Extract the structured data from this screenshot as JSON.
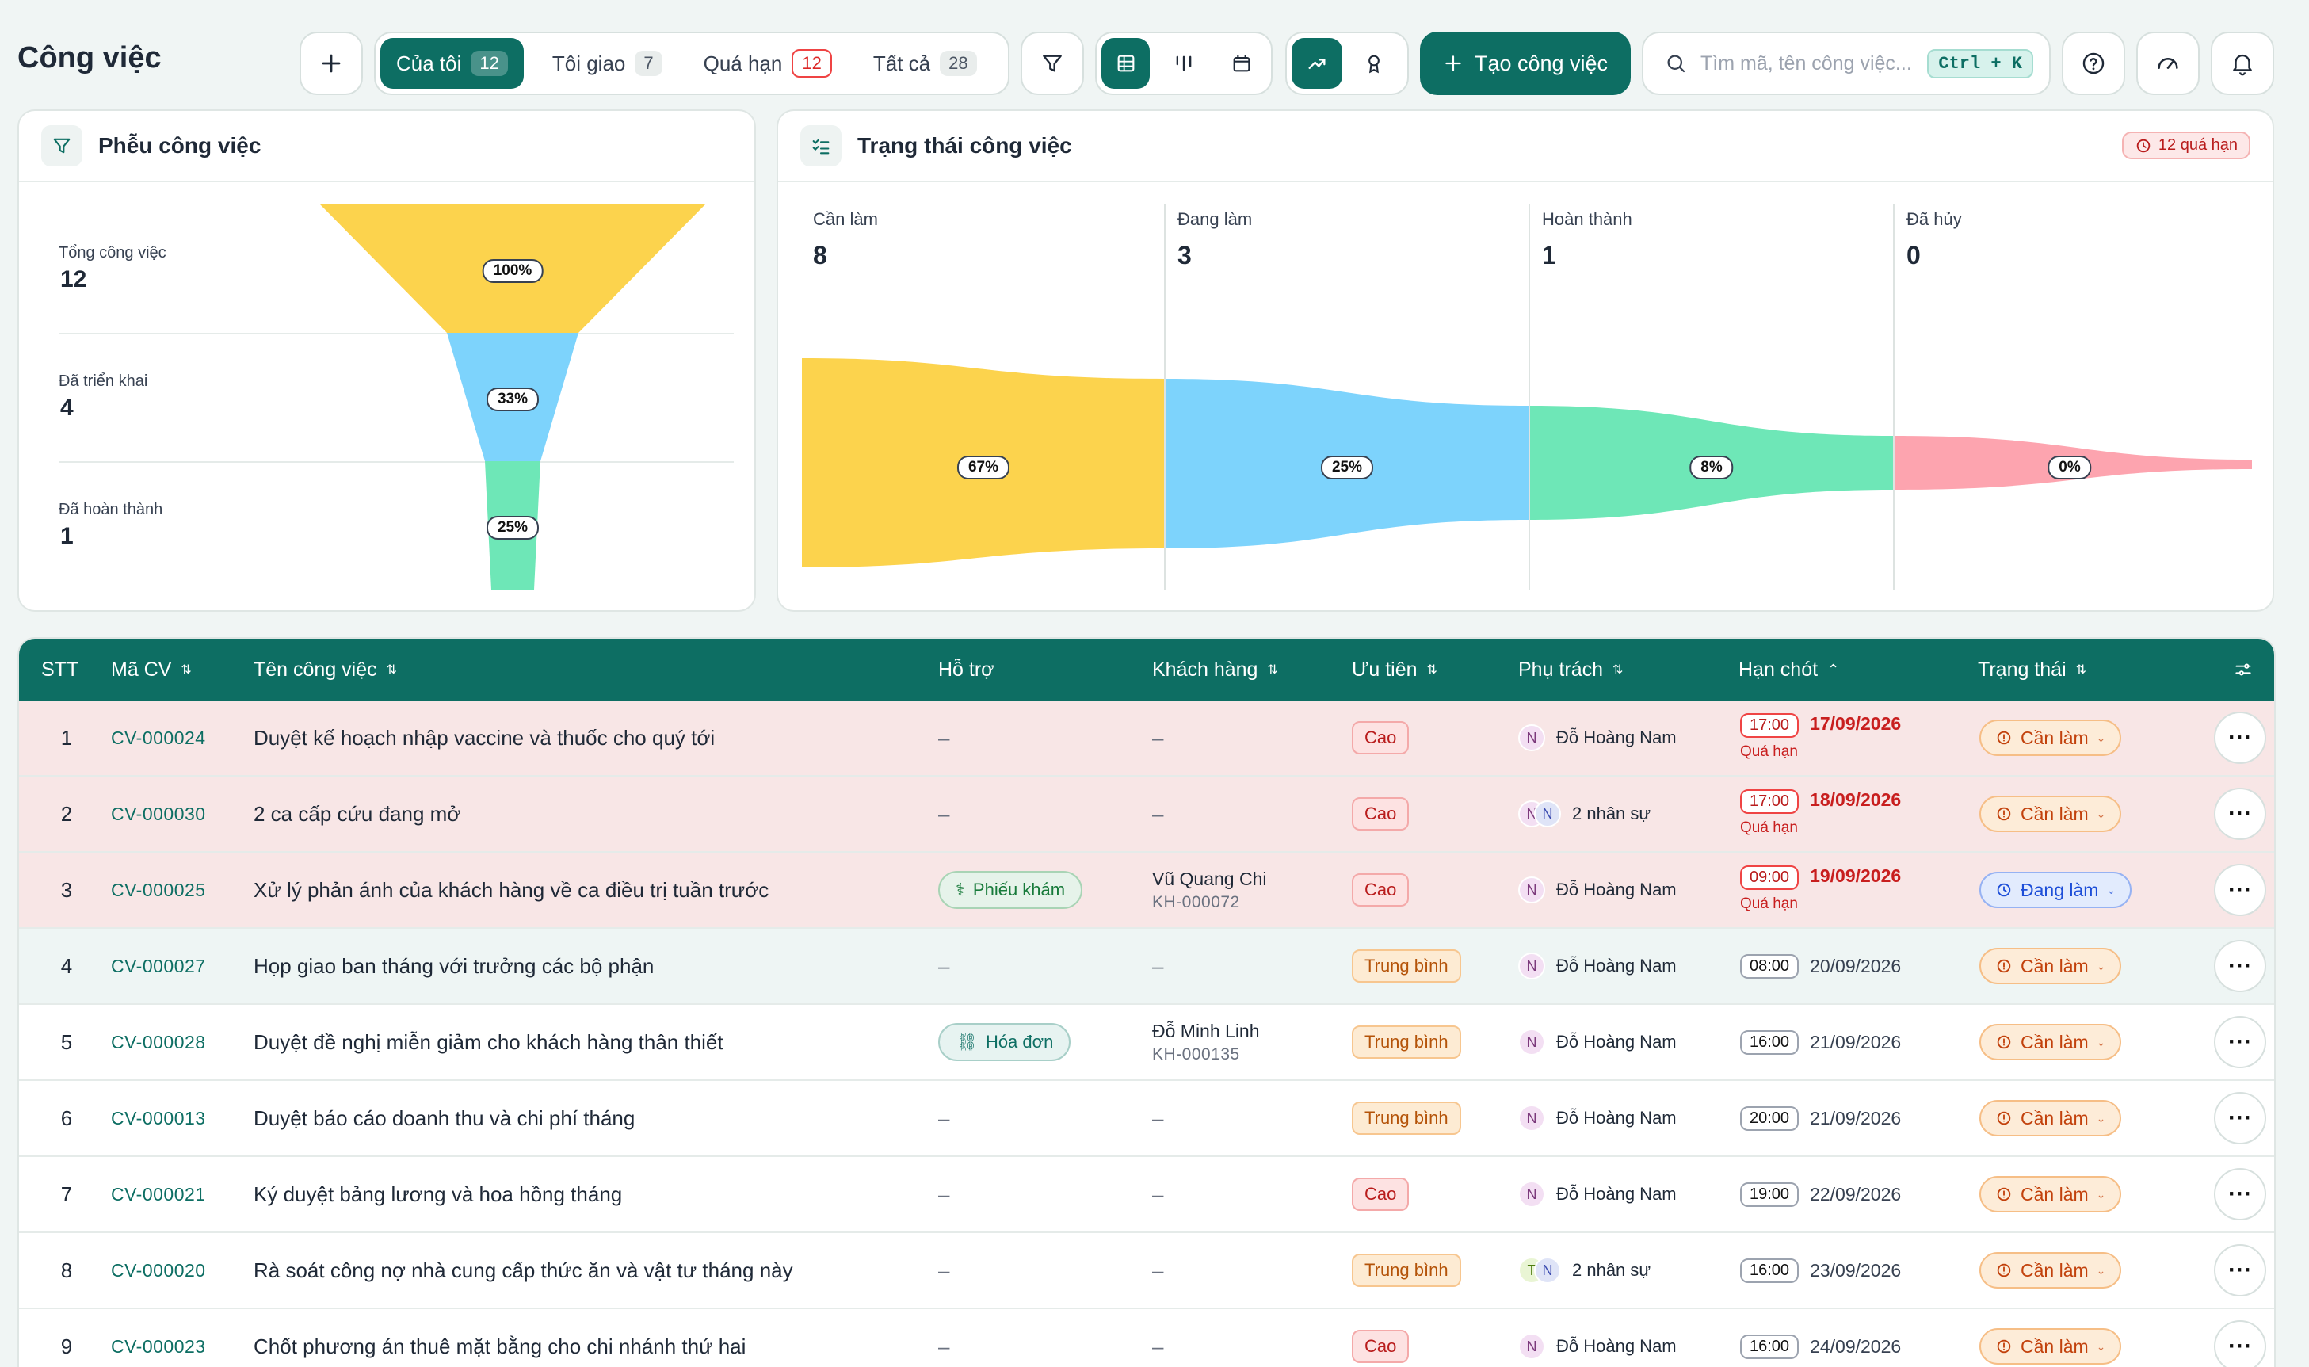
{
  "header": {
    "title": "Công việc",
    "tabs": [
      {
        "label": "Của tôi",
        "count": "12"
      },
      {
        "label": "Tôi giao",
        "count": "7"
      },
      {
        "label": "Quá hạn",
        "count": "12"
      },
      {
        "label": "Tất cả",
        "count": "28"
      }
    ],
    "create_label": "Tạo công việc",
    "search_placeholder": "Tìm mã, tên công việc...",
    "shortcut": "Ctrl + K"
  },
  "funnel": {
    "title": "Phễu công việc",
    "stages": [
      {
        "label": "Tổng công việc",
        "value": "12",
        "percent": "100%"
      },
      {
        "label": "Đã triển khai",
        "value": "4",
        "percent": "33%"
      },
      {
        "label": "Đã hoàn thành",
        "value": "1",
        "percent": "25%"
      }
    ]
  },
  "status_flow": {
    "title": "Trạng thái công việc",
    "overdue_badge": "12 quá hạn",
    "stages": [
      {
        "label": "Cần làm",
        "value": "8",
        "percent": "67%",
        "color": "#fcd34d"
      },
      {
        "label": "Đang làm",
        "value": "3",
        "percent": "25%",
        "color": "#7dd3fc"
      },
      {
        "label": "Hoàn thành",
        "value": "1",
        "percent": "8%",
        "color": "#6ee7b7"
      },
      {
        "label": "Đã hủy",
        "value": "0",
        "percent": "0%",
        "color": "#fda4af"
      }
    ]
  },
  "table": {
    "columns": {
      "stt": "STT",
      "code": "Mã CV",
      "name": "Tên công việc",
      "support": "Hỗ trợ",
      "customer": "Khách hàng",
      "priority": "Ưu tiên",
      "owner": "Phụ trách",
      "deadline": "Hạn chót",
      "status": "Trạng thái"
    },
    "overdue_label": "Quá hạn",
    "rows": [
      {
        "stt": "1",
        "code": "CV-000024",
        "name": "Duyệt kế hoạch nhập vaccine và thuốc cho quý tới",
        "support": "–",
        "customer_name": "–",
        "customer_code": "",
        "priority": "Cao",
        "owner": "Đỗ Hoàng Nam",
        "avatar": "N",
        "time": "17:00",
        "date": "17/09/2026",
        "overdue": true,
        "status": "Cần làm"
      },
      {
        "stt": "2",
        "code": "CV-000030",
        "name": "2 ca cấp cứu đang mở",
        "support": "–",
        "customer_name": "–",
        "customer_code": "",
        "priority": "Cao",
        "owner": "2 nhân sự",
        "avatar": "N",
        "avatar2": "N",
        "time": "17:00",
        "date": "18/09/2026",
        "overdue": true,
        "status": "Cần làm"
      },
      {
        "stt": "3",
        "code": "CV-000025",
        "name": "Xử lý phản ánh của khách hàng về ca điều trị tuần trước",
        "support": "Phiếu khám",
        "customer_name": "Vũ Quang Chi",
        "customer_code": "KH-000072",
        "priority": "Cao",
        "owner": "Đỗ Hoàng Nam",
        "avatar": "N",
        "time": "09:00",
        "date": "19/09/2026",
        "overdue": true,
        "status": "Đang làm"
      },
      {
        "stt": "4",
        "code": "CV-000027",
        "name": "Họp giao ban tháng với trưởng các bộ phận",
        "support": "–",
        "customer_name": "–",
        "customer_code": "",
        "priority": "Trung bình",
        "owner": "Đỗ Hoàng Nam",
        "avatar": "N",
        "time": "08:00",
        "date": "20/09/2026",
        "overdue": false,
        "status": "Cần làm"
      },
      {
        "stt": "5",
        "code": "CV-000028",
        "name": "Duyệt đề nghị miễn giảm cho khách hàng thân thiết",
        "support": "Hóa đơn",
        "customer_name": "Đỗ Minh Linh",
        "customer_code": "KH-000135",
        "priority": "Trung bình",
        "owner": "Đỗ Hoàng Nam",
        "avatar": "N",
        "time": "16:00",
        "date": "21/09/2026",
        "overdue": false,
        "status": "Cần làm"
      },
      {
        "stt": "6",
        "code": "CV-000013",
        "name": "Duyệt báo cáo doanh thu và chi phí tháng",
        "support": "–",
        "customer_name": "–",
        "customer_code": "",
        "priority": "Trung bình",
        "owner": "Đỗ Hoàng Nam",
        "avatar": "N",
        "time": "20:00",
        "date": "21/09/2026",
        "overdue": false,
        "status": "Cần làm"
      },
      {
        "stt": "7",
        "code": "CV-000021",
        "name": "Ký duyệt bảng lương và hoa hồng tháng",
        "support": "–",
        "customer_name": "–",
        "customer_code": "",
        "priority": "Cao",
        "owner": "Đỗ Hoàng Nam",
        "avatar": "N",
        "time": "19:00",
        "date": "22/09/2026",
        "overdue": false,
        "status": "Cần làm"
      },
      {
        "stt": "8",
        "code": "CV-000020",
        "name": "Rà soát công nợ nhà cung cấp thức ăn và vật tư tháng này",
        "support": "–",
        "customer_name": "–",
        "customer_code": "",
        "priority": "Trung bình",
        "owner": "2 nhân sự",
        "avatar": "T",
        "avatar2": "N",
        "time": "16:00",
        "date": "23/09/2026",
        "overdue": false,
        "status": "Cần làm"
      },
      {
        "stt": "9",
        "code": "CV-000023",
        "name": "Chốt phương án thuê mặt bằng cho chi nhánh thứ hai",
        "support": "–",
        "customer_name": "–",
        "customer_code": "",
        "priority": "Cao",
        "owner": "Đỗ Hoàng Nam",
        "avatar": "N",
        "time": "16:00",
        "date": "24/09/2026",
        "overdue": false,
        "status": "Cần làm"
      }
    ]
  }
}
